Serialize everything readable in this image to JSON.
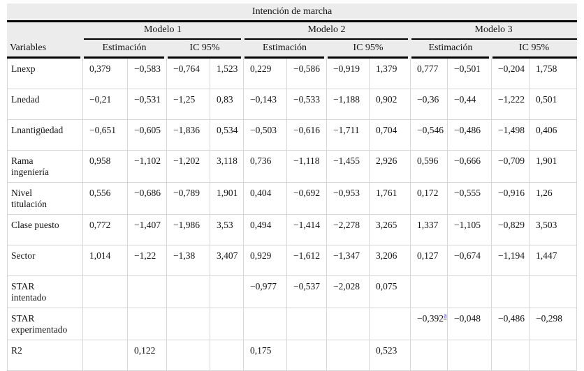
{
  "title": "Intención de marcha",
  "header": {
    "variables_label": "Variables",
    "models": [
      "Modelo 1",
      "Modelo 2",
      "Modelo 3"
    ],
    "subheaders": [
      "Estimación",
      "IC 95%"
    ]
  },
  "rows": [
    {
      "variable": "Lnexp",
      "variable_lines": [
        "Lnexp"
      ],
      "cells": [
        "0,379",
        "−0,583",
        "−0,764",
        "1,523",
        "0,229",
        "−0,586",
        "−0,919",
        "1,379",
        "0,777",
        "−0,501",
        "−0,204",
        "1,758"
      ]
    },
    {
      "variable": "Lnedad",
      "variable_lines": [
        "Lnedad"
      ],
      "cells": [
        "−0,21",
        "−0,531",
        "−1,25",
        "0,83",
        "−0,143",
        "−0,533",
        "−1,188",
        "0,902",
        "−0,36",
        "−0,44",
        "−1,222",
        "0,501"
      ]
    },
    {
      "variable": "Lnantigüedad",
      "variable_lines": [
        "Lnantigüedad"
      ],
      "cells": [
        "−0,651",
        "−0,605",
        "−1,836",
        "0,534",
        "−0,503",
        "−0,616",
        "−1,711",
        "0,704",
        "−0,546",
        "−0,486",
        "−1,498",
        "0,406"
      ]
    },
    {
      "variable": "Rama ingeniería",
      "variable_lines": [
        "Rama",
        "ingeniería"
      ],
      "cells": [
        "0,958",
        "−1,102",
        "−1,202",
        "3,118",
        "0,736",
        "−1,118",
        "−1,455",
        "2,926",
        "0,596",
        "−0,666",
        "−0,709",
        "1,901"
      ]
    },
    {
      "variable": "Nivel titulación",
      "variable_lines": [
        "Nivel",
        "titulación"
      ],
      "cells": [
        "0,556",
        "−0,686",
        "−0,789",
        "1,901",
        "0,404",
        "−0,692",
        "−0,953",
        "1,761",
        "0,172",
        "−0,555",
        "−0,916",
        "1,26"
      ]
    },
    {
      "variable": "Clase puesto",
      "variable_lines": [
        "Clase puesto"
      ],
      "cells": [
        "0,772",
        "−1,407",
        "−1,986",
        "3,53",
        "0,494",
        "−1,414",
        "−2,278",
        "3,265",
        "1,337",
        "−1,105",
        "−0,829",
        "3,503"
      ]
    },
    {
      "variable": "Sector",
      "variable_lines": [
        "Sector"
      ],
      "cells": [
        "1,014",
        "−1,22",
        "−1,38",
        "3,407",
        "0,929",
        "−1,612",
        "−1,347",
        "3,206",
        "0,127",
        "−0,674",
        "−1,194",
        "1,447"
      ]
    },
    {
      "variable": "STAR intentado",
      "variable_lines": [
        "STAR",
        "intentado"
      ],
      "cells": [
        "",
        "",
        "",
        "",
        "−0,977",
        "−0,537",
        "−2,028",
        "0,075",
        "",
        "",
        "",
        ""
      ]
    },
    {
      "variable": "STAR experimentado",
      "variable_lines": [
        "STAR",
        "experimentado"
      ],
      "cells": [
        "",
        "",
        "",
        "",
        "",
        "",
        "",
        "",
        {
          "text": "−0,392",
          "sup": "a"
        },
        "−0,048",
        "−0,486",
        "−0,298"
      ]
    },
    {
      "variable": "R2",
      "variable_lines": [
        "R2"
      ],
      "cells": [
        "",
        "0,122",
        "",
        "",
        "0,175",
        "",
        "",
        "0,523",
        "",
        "",
        "",
        ""
      ]
    }
  ]
}
